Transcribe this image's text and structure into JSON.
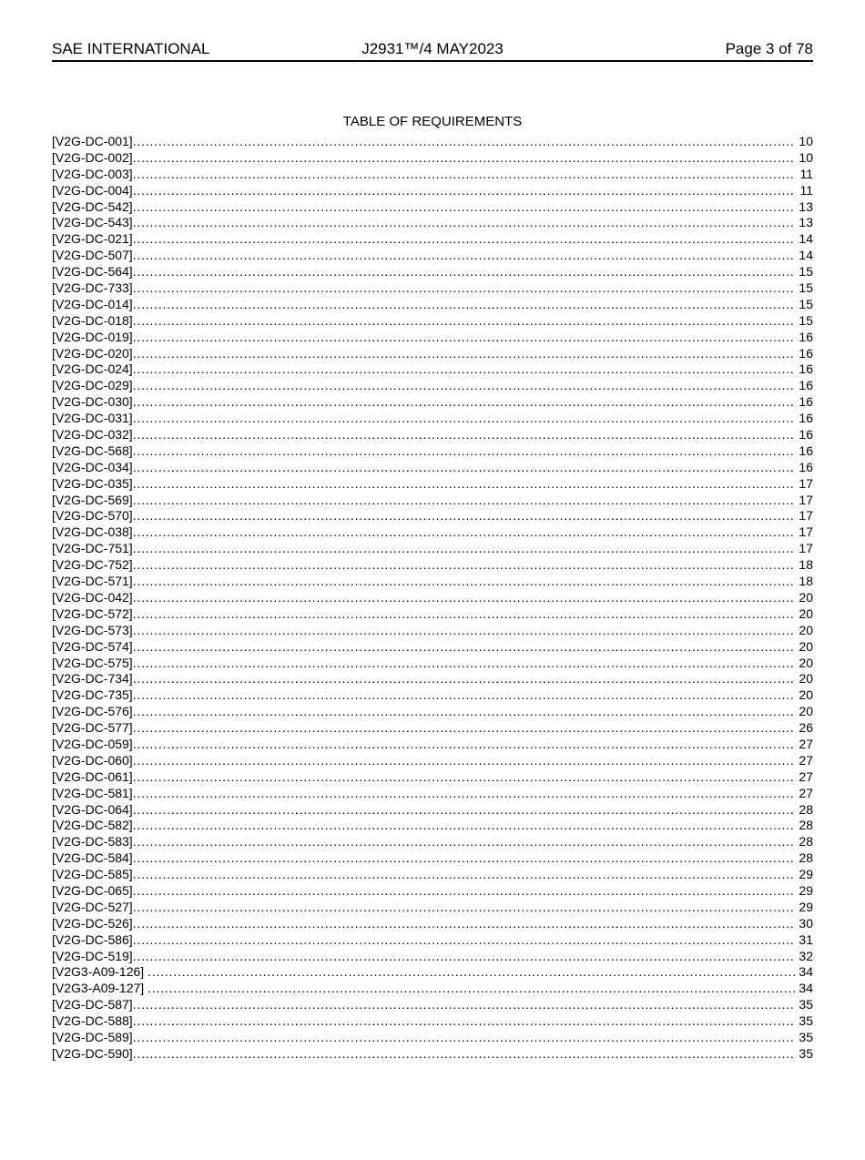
{
  "header": {
    "left": "SAE INTERNATIONAL",
    "center": "J2931™/4 MAY2023",
    "right": "Page 3 of 78"
  },
  "toc": {
    "title": "TABLE OF REQUIREMENTS",
    "entries": [
      {
        "label": "[V2G-DC-001]",
        "page": "10"
      },
      {
        "label": "[V2G-DC-002]",
        "page": "10"
      },
      {
        "label": "[V2G-DC-003]",
        "page": "11"
      },
      {
        "label": "[V2G-DC-004]",
        "page": "11"
      },
      {
        "label": "[V2G-DC-542]",
        "page": "13"
      },
      {
        "label": "[V2G-DC-543]",
        "page": "13"
      },
      {
        "label": "[V2G-DC-021]",
        "page": "14"
      },
      {
        "label": "[V2G-DC-507]",
        "page": "14"
      },
      {
        "label": "[V2G-DC-564]",
        "page": "15"
      },
      {
        "label": "[V2G-DC-733]",
        "page": "15"
      },
      {
        "label": "[V2G-DC-014]",
        "page": "15"
      },
      {
        "label": "[V2G-DC-018]",
        "page": "15"
      },
      {
        "label": "[V2G-DC-019]",
        "page": "16"
      },
      {
        "label": "[V2G-DC-020]",
        "page": "16"
      },
      {
        "label": "[V2G-DC-024]",
        "page": "16"
      },
      {
        "label": "[V2G-DC-029]",
        "page": "16"
      },
      {
        "label": "[V2G-DC-030]",
        "page": "16"
      },
      {
        "label": "[V2G-DC-031]",
        "page": "16"
      },
      {
        "label": "[V2G-DC-032]",
        "page": "16"
      },
      {
        "label": "[V2G-DC-568]",
        "page": "16"
      },
      {
        "label": "[V2G-DC-034]",
        "page": "16"
      },
      {
        "label": "[V2G-DC-035]",
        "page": "17"
      },
      {
        "label": "[V2G-DC-569]",
        "page": "17"
      },
      {
        "label": "[V2G-DC-570]",
        "page": "17"
      },
      {
        "label": "[V2G-DC-038]",
        "page": "17"
      },
      {
        "label": "[V2G-DC-751]",
        "page": "17"
      },
      {
        "label": "[V2G-DC-752]",
        "page": "18"
      },
      {
        "label": "[V2G-DC-571]",
        "page": "18"
      },
      {
        "label": "[V2G-DC-042]",
        "page": "20"
      },
      {
        "label": "[V2G-DC-572]",
        "page": "20"
      },
      {
        "label": "[V2G-DC-573]",
        "page": "20"
      },
      {
        "label": "[V2G-DC-574]",
        "page": "20"
      },
      {
        "label": "[V2G-DC-575]",
        "page": "20"
      },
      {
        "label": "[V2G-DC-734]",
        "page": "20"
      },
      {
        "label": "[V2G-DC-735]",
        "page": "20"
      },
      {
        "label": "[V2G-DC-576]",
        "page": "20"
      },
      {
        "label": "[V2G-DC-577]",
        "page": "26"
      },
      {
        "label": "[V2G-DC-059]",
        "page": "27"
      },
      {
        "label": "[V2G-DC-060]",
        "page": "27"
      },
      {
        "label": "[V2G-DC-061]",
        "page": "27"
      },
      {
        "label": "[V2G-DC-581]",
        "page": "27"
      },
      {
        "label": "[V2G-DC-064]",
        "page": "28"
      },
      {
        "label": "[V2G-DC-582]",
        "page": "28"
      },
      {
        "label": "[V2G-DC-583]",
        "page": "28"
      },
      {
        "label": "[V2G-DC-584]",
        "page": "28"
      },
      {
        "label": "[V2G-DC-585]",
        "page": "29"
      },
      {
        "label": "[V2G-DC-065]",
        "page": "29"
      },
      {
        "label": "[V2G-DC-527]",
        "page": "29"
      },
      {
        "label": "[V2G-DC-526]",
        "page": "30"
      },
      {
        "label": "[V2G-DC-586]",
        "page": "31"
      },
      {
        "label": "[V2G-DC-519]",
        "page": "32"
      },
      {
        "label": "[V2G3-A09-126] ",
        "page": "34"
      },
      {
        "label": "[V2G3-A09-127] ",
        "page": "34"
      },
      {
        "label": "[V2G-DC-587]",
        "page": "35"
      },
      {
        "label": "[V2G-DC-588]",
        "page": "35"
      },
      {
        "label": "[V2G-DC-589]",
        "page": "35"
      },
      {
        "label": "[V2G-DC-590]",
        "page": "35"
      }
    ]
  }
}
